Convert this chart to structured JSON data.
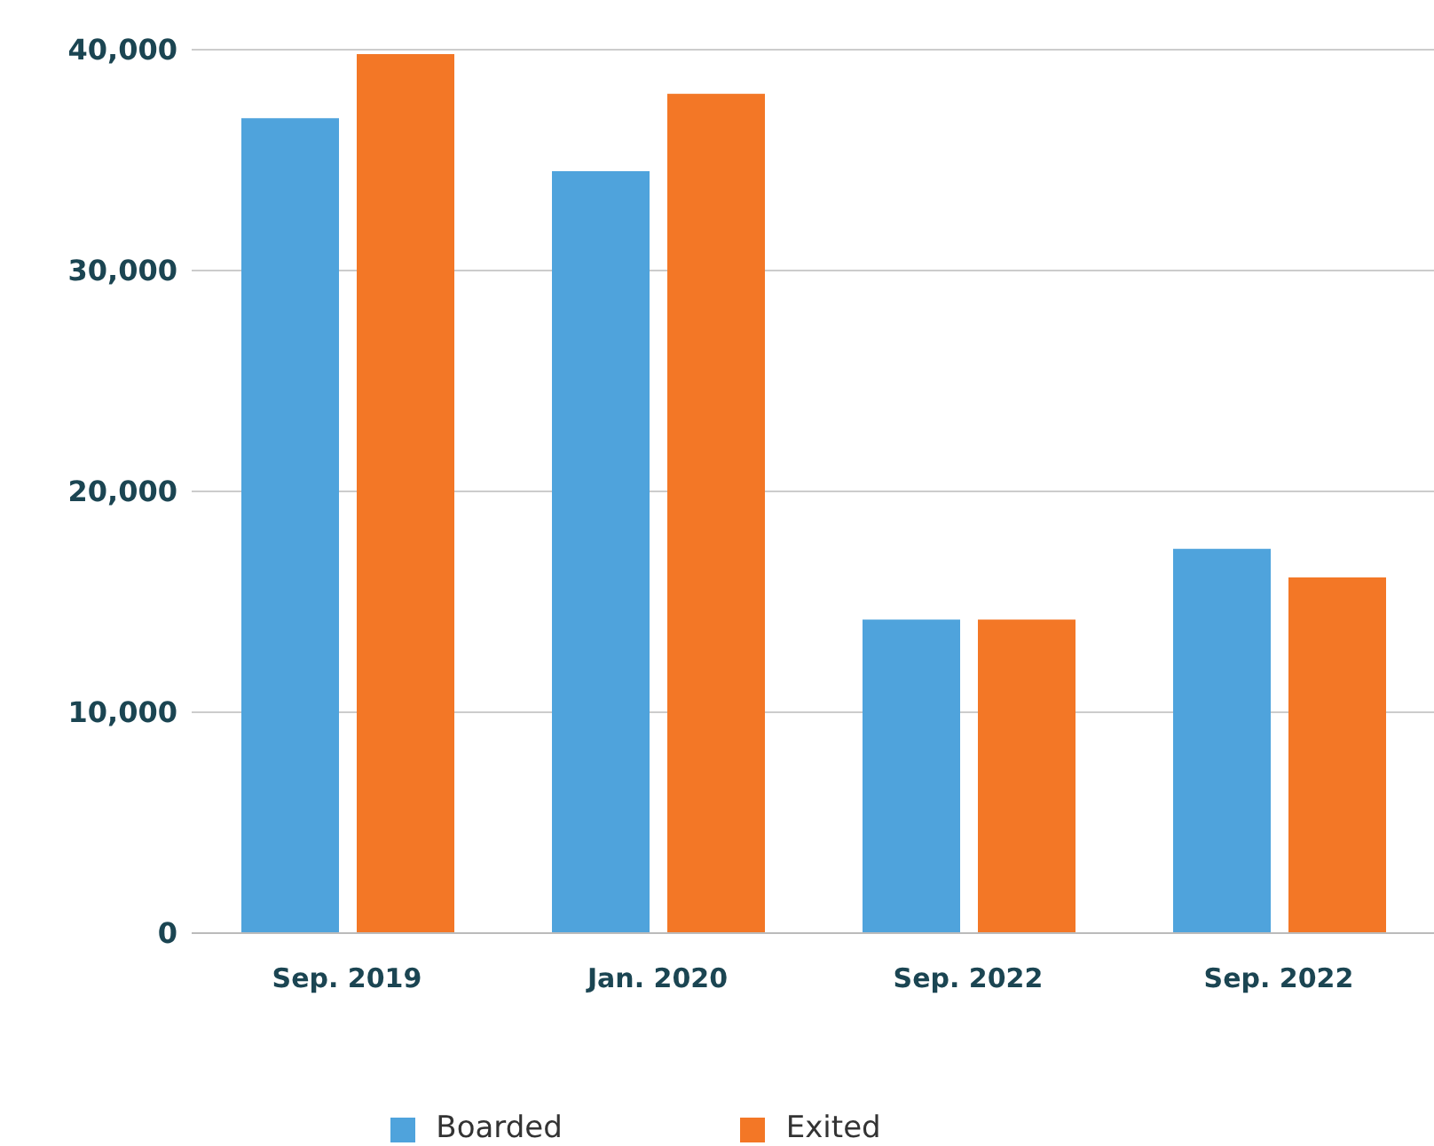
{
  "chart_data": {
    "type": "bar",
    "categories": [
      "Sep. 2019",
      "Jan. 2020",
      "Sep. 2022",
      "Sep. 2022"
    ],
    "series": [
      {
        "name": "Boarded",
        "color": "#4fa3dc",
        "values": [
          36900,
          34500,
          14200,
          17400
        ]
      },
      {
        "name": "Exited",
        "color": "#f37726",
        "values": [
          39800,
          38000,
          14200,
          16100
        ]
      }
    ],
    "ylim": [
      0,
      40000
    ],
    "yticks": [
      0,
      {
        "value": 10000,
        "label": "10,000"
      },
      {
        "value": 20000,
        "label": "20,000"
      },
      {
        "value": 30000,
        "label": "30,000"
      },
      {
        "value": 40000,
        "label": "40,000"
      }
    ],
    "grid": "y",
    "legend": "bottom"
  }
}
